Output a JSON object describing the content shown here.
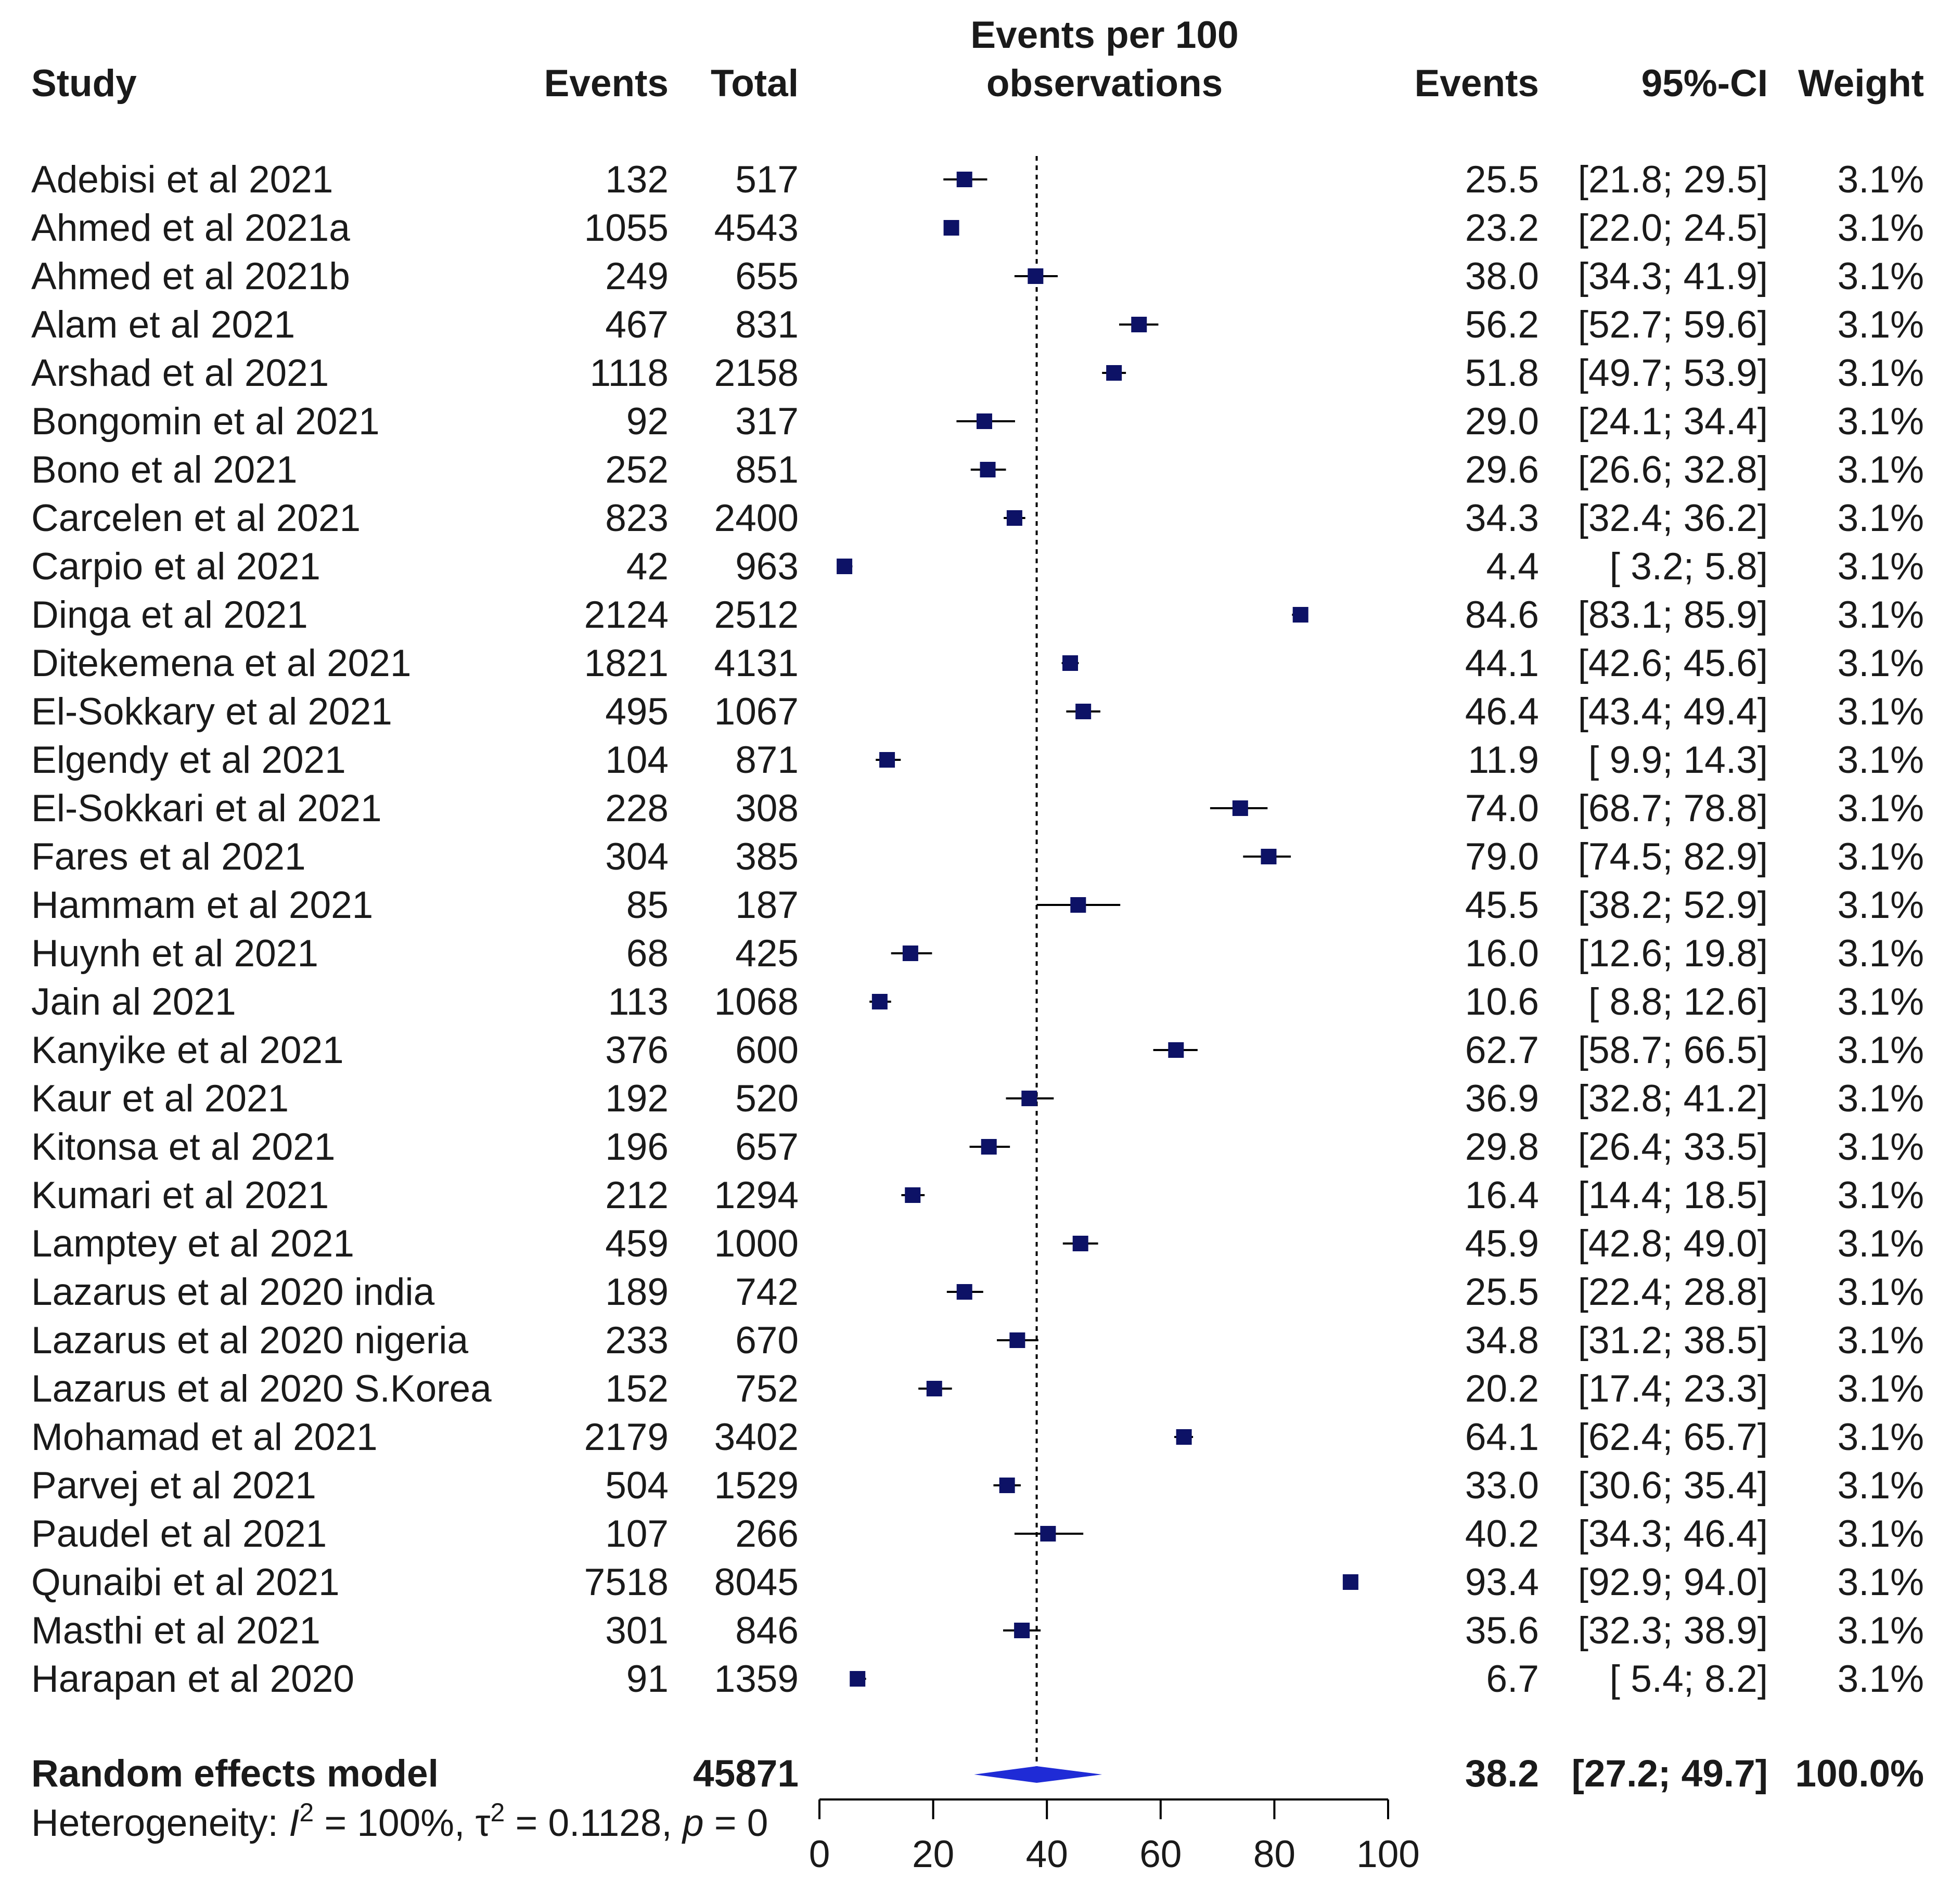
{
  "chart_data": {
    "type": "forest",
    "title": "Events per 100 observations",
    "title_lines": [
      "Events per 100",
      "observations"
    ],
    "headers": {
      "study": "Study",
      "events": "Events",
      "total": "Total",
      "effect": "Events",
      "ci": "95%-CI",
      "weight": "Weight"
    },
    "xlim": [
      0,
      100
    ],
    "x_ticks": [
      "0",
      "20",
      "40",
      "60",
      "80",
      "100"
    ],
    "x_tick_values": [
      0,
      20,
      40,
      60,
      80,
      100
    ],
    "reference_line": 38.2,
    "colors": {
      "square": "#0d1266",
      "diamond": "#1f2bd6",
      "line": "#000000"
    },
    "studies": [
      {
        "name": "Adebisi et al 2021",
        "events": "132",
        "total": "517",
        "est": 25.5,
        "lo": 21.8,
        "hi": 29.5,
        "est_text": "25.5",
        "ci_text": "[21.8; 29.5]",
        "weight": "3.1%"
      },
      {
        "name": "Ahmed et al 2021a",
        "events": "1055",
        "total": "4543",
        "est": 23.2,
        "lo": 22.0,
        "hi": 24.5,
        "est_text": "23.2",
        "ci_text": "[22.0; 24.5]",
        "weight": "3.1%"
      },
      {
        "name": "Ahmed et al 2021b",
        "events": "249",
        "total": "655",
        "est": 38.0,
        "lo": 34.3,
        "hi": 41.9,
        "est_text": "38.0",
        "ci_text": "[34.3; 41.9]",
        "weight": "3.1%"
      },
      {
        "name": "Alam et al 2021",
        "events": "467",
        "total": "831",
        "est": 56.2,
        "lo": 52.7,
        "hi": 59.6,
        "est_text": "56.2",
        "ci_text": "[52.7; 59.6]",
        "weight": "3.1%"
      },
      {
        "name": "Arshad et al 2021",
        "events": "1118",
        "total": "2158",
        "est": 51.8,
        "lo": 49.7,
        "hi": 53.9,
        "est_text": "51.8",
        "ci_text": "[49.7; 53.9]",
        "weight": "3.1%"
      },
      {
        "name": "Bongomin et al 2021",
        "events": "92",
        "total": "317",
        "est": 29.0,
        "lo": 24.1,
        "hi": 34.4,
        "est_text": "29.0",
        "ci_text": "[24.1; 34.4]",
        "weight": "3.1%"
      },
      {
        "name": "Bono et al 2021",
        "events": "252",
        "total": "851",
        "est": 29.6,
        "lo": 26.6,
        "hi": 32.8,
        "est_text": "29.6",
        "ci_text": "[26.6; 32.8]",
        "weight": "3.1%"
      },
      {
        "name": "Carcelen et al 2021",
        "events": "823",
        "total": "2400",
        "est": 34.3,
        "lo": 32.4,
        "hi": 36.2,
        "est_text": "34.3",
        "ci_text": "[32.4; 36.2]",
        "weight": "3.1%"
      },
      {
        "name": "Carpio et al 2021",
        "events": "42",
        "total": "963",
        "est": 4.4,
        "lo": 3.2,
        "hi": 5.8,
        "est_text": "4.4",
        "ci_text": "[ 3.2;  5.8]",
        "weight": "3.1%"
      },
      {
        "name": "Dinga et al 2021",
        "events": "2124",
        "total": "2512",
        "est": 84.6,
        "lo": 83.1,
        "hi": 85.9,
        "est_text": "84.6",
        "ci_text": "[83.1; 85.9]",
        "weight": "3.1%"
      },
      {
        "name": "Ditekemena et al 2021",
        "events": "1821",
        "total": "4131",
        "est": 44.1,
        "lo": 42.6,
        "hi": 45.6,
        "est_text": "44.1",
        "ci_text": "[42.6; 45.6]",
        "weight": "3.1%"
      },
      {
        "name": "El-Sokkary et al 2021",
        "events": "495",
        "total": "1067",
        "est": 46.4,
        "lo": 43.4,
        "hi": 49.4,
        "est_text": "46.4",
        "ci_text": "[43.4; 49.4]",
        "weight": "3.1%"
      },
      {
        "name": "Elgendy et al 2021",
        "events": "104",
        "total": "871",
        "est": 11.9,
        "lo": 9.9,
        "hi": 14.3,
        "est_text": "11.9",
        "ci_text": "[ 9.9; 14.3]",
        "weight": "3.1%"
      },
      {
        "name": "El-Sokkari et al 2021",
        "events": "228",
        "total": "308",
        "est": 74.0,
        "lo": 68.7,
        "hi": 78.8,
        "est_text": "74.0",
        "ci_text": "[68.7; 78.8]",
        "weight": "3.1%"
      },
      {
        "name": "Fares et al 2021",
        "events": "304",
        "total": "385",
        "est": 79.0,
        "lo": 74.5,
        "hi": 82.9,
        "est_text": "79.0",
        "ci_text": "[74.5; 82.9]",
        "weight": "3.1%"
      },
      {
        "name": "Hammam et al 2021",
        "events": "85",
        "total": "187",
        "est": 45.5,
        "lo": 38.2,
        "hi": 52.9,
        "est_text": "45.5",
        "ci_text": "[38.2; 52.9]",
        "weight": "3.1%"
      },
      {
        "name": "Huynh et al 2021",
        "events": "68",
        "total": "425",
        "est": 16.0,
        "lo": 12.6,
        "hi": 19.8,
        "est_text": "16.0",
        "ci_text": "[12.6; 19.8]",
        "weight": "3.1%"
      },
      {
        "name": "Jain al 2021",
        "events": "113",
        "total": "1068",
        "est": 10.6,
        "lo": 8.8,
        "hi": 12.6,
        "est_text": "10.6",
        "ci_text": "[ 8.8; 12.6]",
        "weight": "3.1%"
      },
      {
        "name": "Kanyike et al 2021",
        "events": "376",
        "total": "600",
        "est": 62.7,
        "lo": 58.7,
        "hi": 66.5,
        "est_text": "62.7",
        "ci_text": "[58.7; 66.5]",
        "weight": "3.1%"
      },
      {
        "name": "Kaur et al 2021",
        "events": "192",
        "total": "520",
        "est": 36.9,
        "lo": 32.8,
        "hi": 41.2,
        "est_text": "36.9",
        "ci_text": "[32.8; 41.2]",
        "weight": "3.1%"
      },
      {
        "name": "Kitonsa et al 2021",
        "events": "196",
        "total": "657",
        "est": 29.8,
        "lo": 26.4,
        "hi": 33.5,
        "est_text": "29.8",
        "ci_text": "[26.4; 33.5]",
        "weight": "3.1%"
      },
      {
        "name": "Kumari et al 2021",
        "events": "212",
        "total": "1294",
        "est": 16.4,
        "lo": 14.4,
        "hi": 18.5,
        "est_text": "16.4",
        "ci_text": "[14.4; 18.5]",
        "weight": "3.1%"
      },
      {
        "name": "Lamptey et al 2021",
        "events": "459",
        "total": "1000",
        "est": 45.9,
        "lo": 42.8,
        "hi": 49.0,
        "est_text": "45.9",
        "ci_text": "[42.8; 49.0]",
        "weight": "3.1%"
      },
      {
        "name": "Lazarus et al 2020 india",
        "events": "189",
        "total": "742",
        "est": 25.5,
        "lo": 22.4,
        "hi": 28.8,
        "est_text": "25.5",
        "ci_text": "[22.4; 28.8]",
        "weight": "3.1%"
      },
      {
        "name": "Lazarus et al 2020 nigeria",
        "events": "233",
        "total": "670",
        "est": 34.8,
        "lo": 31.2,
        "hi": 38.5,
        "est_text": "34.8",
        "ci_text": "[31.2; 38.5]",
        "weight": "3.1%"
      },
      {
        "name": "Lazarus et al 2020 S.Korea",
        "events": "152",
        "total": "752",
        "est": 20.2,
        "lo": 17.4,
        "hi": 23.3,
        "est_text": "20.2",
        "ci_text": "[17.4; 23.3]",
        "weight": "3.1%"
      },
      {
        "name": "Mohamad et al 2021",
        "events": "2179",
        "total": "3402",
        "est": 64.1,
        "lo": 62.4,
        "hi": 65.7,
        "est_text": "64.1",
        "ci_text": "[62.4; 65.7]",
        "weight": "3.1%"
      },
      {
        "name": "Parvej et al 2021",
        "events": "504",
        "total": "1529",
        "est": 33.0,
        "lo": 30.6,
        "hi": 35.4,
        "est_text": "33.0",
        "ci_text": "[30.6; 35.4]",
        "weight": "3.1%"
      },
      {
        "name": "Paudel et al 2021",
        "events": "107",
        "total": "266",
        "est": 40.2,
        "lo": 34.3,
        "hi": 46.4,
        "est_text": "40.2",
        "ci_text": "[34.3; 46.4]",
        "weight": "3.1%"
      },
      {
        "name": "Qunaibi et al 2021",
        "events": "7518",
        "total": "8045",
        "est": 93.4,
        "lo": 92.9,
        "hi": 94.0,
        "est_text": "93.4",
        "ci_text": "[92.9; 94.0]",
        "weight": "3.1%"
      },
      {
        "name": "Masthi et al 2021",
        "events": "301",
        "total": "846",
        "est": 35.6,
        "lo": 32.3,
        "hi": 38.9,
        "est_text": "35.6",
        "ci_text": "[32.3; 38.9]",
        "weight": "3.1%"
      },
      {
        "name": "Harapan et al 2020",
        "events": "91",
        "total": "1359",
        "est": 6.7,
        "lo": 5.4,
        "hi": 8.2,
        "est_text": "6.7",
        "ci_text": "[ 5.4;  8.2]",
        "weight": "3.1%"
      }
    ],
    "summary": {
      "label": "Random effects model",
      "total": "45871",
      "est": 38.2,
      "lo": 27.2,
      "hi": 49.7,
      "est_text": "38.2",
      "ci_text": "[27.2; 49.7]",
      "weight": "100.0%"
    },
    "heterogeneity": {
      "prefix": "Heterogeneity: ",
      "i2_symbol": "I",
      "i2_value": " = 100%, ",
      "tau2_symbol": "τ",
      "tau2_value": " = 0.1128, ",
      "p_symbol": "p",
      "p_value": " = 0"
    }
  }
}
